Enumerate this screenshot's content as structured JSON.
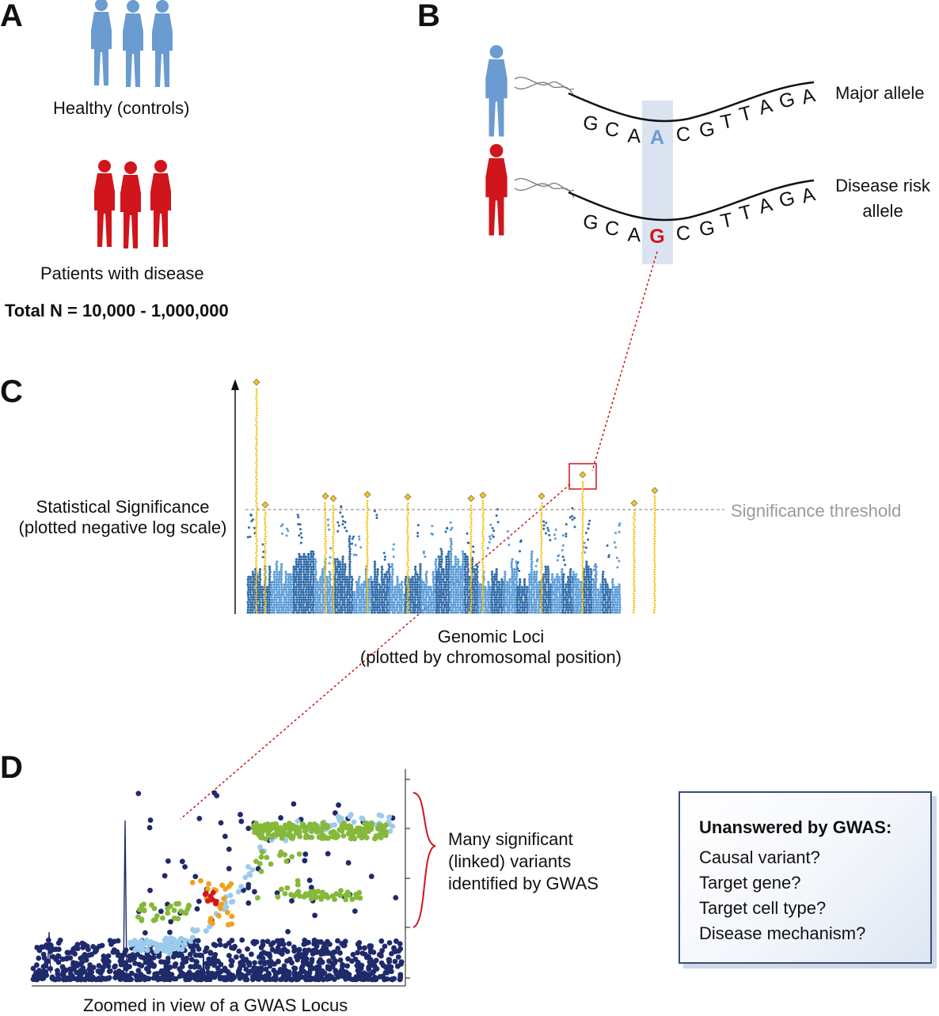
{
  "panels": {
    "a": "A",
    "b": "B",
    "c": "C",
    "d": "D"
  },
  "panel_a": {
    "controls_label": "Healthy (controls)",
    "patients_label": "Patients with disease",
    "total_label": "Total N = 10,000 - 1,000,000",
    "colors": {
      "controls": "#6a9bd1",
      "patients": "#d0161c"
    }
  },
  "panel_b": {
    "major_label": "Major allele",
    "risk_label_line1": "Disease risk",
    "risk_label_line2": "allele",
    "sequence_letters": [
      "G",
      "C",
      "A",
      "A",
      "C",
      "G",
      "T",
      "T",
      "A",
      "G",
      "A"
    ],
    "risk_sequence_letters": [
      "G",
      "C",
      "A",
      "G",
      "C",
      "G",
      "T",
      "T",
      "A",
      "G",
      "A"
    ],
    "major_variant": "A",
    "risk_variant": "G",
    "colors": {
      "major": "#6a9bd1",
      "risk": "#d0161c",
      "highlight": "#dbe3f0"
    }
  },
  "panel_c": {
    "y_label_line1": "Statistical Significance",
    "y_label_line2": "(plotted negative log scale)",
    "x_label_line1": "Genomic Loci",
    "x_label_line2": "(plotted by chromosomal position)",
    "threshold_label": "Significance threshold",
    "colors": {
      "dark": "#2e6aa8",
      "light": "#5a9bd8",
      "hit": "#f5c518",
      "threshold": "#9a9a9a",
      "box": "#d0161c"
    }
  },
  "panel_d": {
    "caption": "Zoomed in view of a GWAS Locus",
    "annotation_line1": "Many significant",
    "annotation_line2": "(linked) variants",
    "annotation_line3": "identified by GWAS",
    "colors": {
      "navy": "#1f2a6b",
      "light_blue": "#9ccbec",
      "green": "#86b83a",
      "orange": "#f0a020",
      "red": "#d0161c"
    }
  },
  "callout": {
    "title": "Unanswered by GWAS:",
    "items": [
      "Causal variant?",
      "Target gene?",
      "Target cell type?",
      "Disease mechanism?"
    ]
  }
}
